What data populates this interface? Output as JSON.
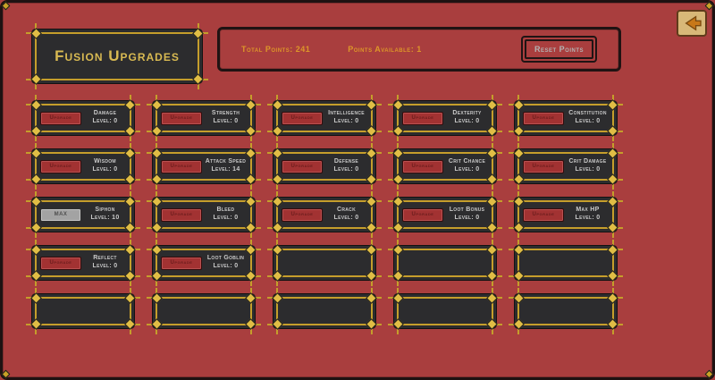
{
  "screen": {
    "title": "Fusion Upgrades"
  },
  "header": {
    "total_points": "Total Points: 241",
    "points_available": "Points Available: 1",
    "reset_label": "Reset Points"
  },
  "nav": {
    "back_icon": "back-arrow"
  },
  "grid": {
    "upgrade_label": "Upgrade",
    "max_label": "MAX",
    "columns": [
      {
        "slots": [
          {
            "name": "Damage",
            "level": "Level: 0"
          },
          {
            "name": "Wisdom",
            "level": "Level: 0"
          },
          {
            "name": "Siphon",
            "level": "Level: 10",
            "maxed": true
          },
          {
            "name": "Reflect",
            "level": "Level: 0"
          },
          {
            "empty": true
          }
        ]
      },
      {
        "slots": [
          {
            "name": "Strength",
            "level": "Level: 0"
          },
          {
            "name": "Attack Speed",
            "level": "Level: 14"
          },
          {
            "name": "Bleed",
            "level": "Level: 0"
          },
          {
            "name": "Loot Goblin",
            "level": "Level: 0"
          },
          {
            "empty": true
          }
        ]
      },
      {
        "slots": [
          {
            "name": "Intelligence",
            "level": "Level: 0"
          },
          {
            "name": "Defense",
            "level": "Level: 0"
          },
          {
            "name": "Crack",
            "level": "Level: 0"
          },
          {
            "empty": true
          },
          {
            "empty": true
          }
        ]
      },
      {
        "slots": [
          {
            "name": "Dexterity",
            "level": "Level: 0"
          },
          {
            "name": "Crit Chance",
            "level": "Level: 0"
          },
          {
            "name": "Loot Bonus",
            "level": "Level: 0"
          },
          {
            "empty": true
          },
          {
            "empty": true
          }
        ]
      },
      {
        "slots": [
          {
            "name": "Constitution",
            "level": "Level: 0"
          },
          {
            "name": "Crit Damage",
            "level": "Level: 0"
          },
          {
            "name": "Max HP",
            "level": "Level: 0"
          },
          {
            "empty": true
          },
          {
            "empty": true
          }
        ]
      }
    ]
  },
  "colors": {
    "background": "#A93E3E",
    "panel": "#2C2C2E",
    "gold_frame": "#C59E2B",
    "title_text": "#D9BA52",
    "header_text": "#DD9629",
    "upgrade_button": "#A23232",
    "max_button": "#A3A3A3"
  }
}
